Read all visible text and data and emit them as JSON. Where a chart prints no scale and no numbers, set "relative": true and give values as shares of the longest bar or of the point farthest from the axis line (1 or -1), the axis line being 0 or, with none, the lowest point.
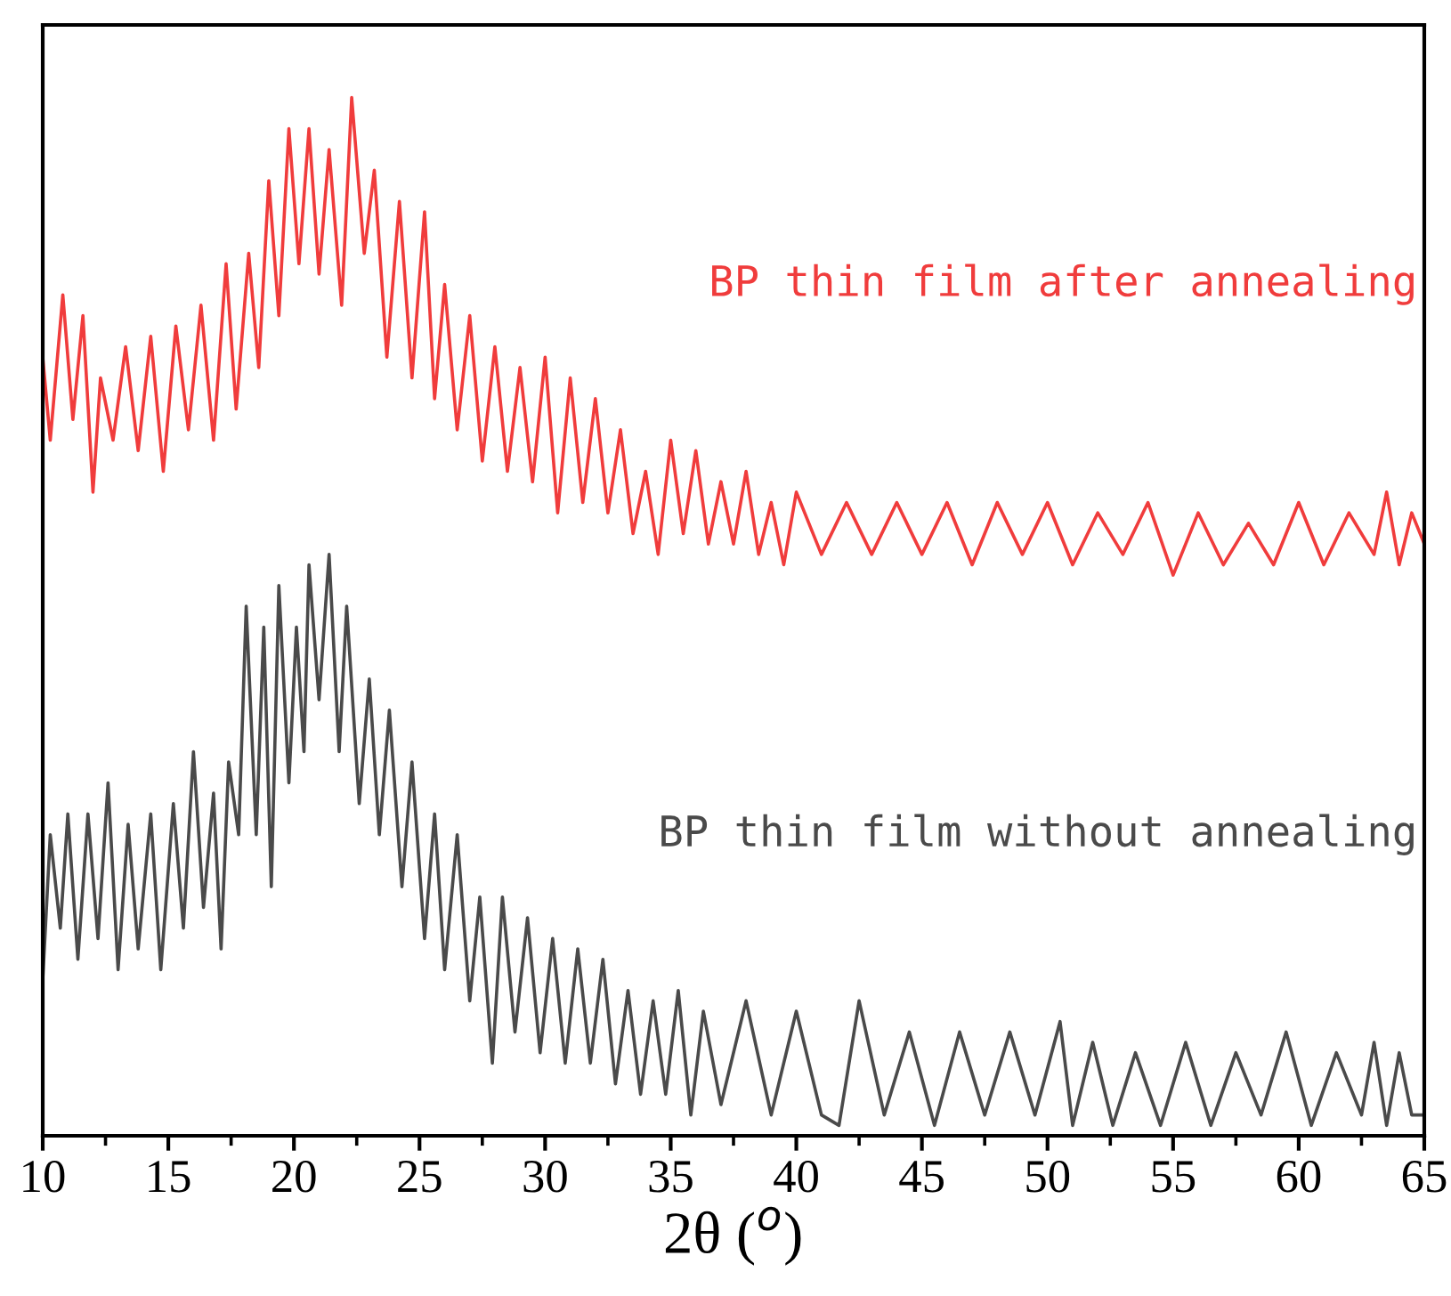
{
  "chart_data": {
    "type": "line",
    "relative": true,
    "xlabel": "2θ ($^{o}$)",
    "xlim": [
      10,
      65
    ],
    "xticks": [
      10,
      15,
      20,
      25,
      30,
      35,
      40,
      45,
      50,
      55,
      60,
      65
    ],
    "grid": false,
    "legend": false,
    "marker": "none",
    "line_style": "solid",
    "series": [
      {
        "name": "BP thin film after annealing",
        "color": "#f03c3c",
        "x": [
          10,
          10.3,
          10.8,
          11.2,
          11.6,
          12.0,
          12.3,
          12.8,
          13.3,
          13.8,
          14.3,
          14.8,
          15.3,
          15.8,
          16.3,
          16.8,
          17.3,
          17.7,
          18.2,
          18.6,
          19.0,
          19.4,
          19.8,
          20.2,
          20.6,
          21.0,
          21.4,
          21.9,
          22.3,
          22.8,
          23.2,
          23.7,
          24.2,
          24.7,
          25.2,
          25.6,
          26.0,
          26.5,
          27.0,
          27.5,
          28.0,
          28.5,
          29.0,
          29.5,
          30.0,
          30.5,
          31.0,
          31.5,
          32.0,
          32.5,
          33.0,
          33.5,
          34.0,
          34.5,
          35.0,
          35.5,
          36.0,
          36.5,
          37.0,
          37.5,
          38.0,
          38.5,
          39.0,
          39.5,
          40,
          41,
          42,
          43,
          44,
          45,
          46,
          47,
          48,
          49,
          50,
          51,
          52,
          53,
          54,
          55,
          56,
          57,
          58,
          59,
          60,
          61,
          62,
          63,
          63.5,
          64,
          64.5,
          65
        ],
        "values": [
          0.75,
          0.67,
          0.81,
          0.69,
          0.79,
          0.62,
          0.73,
          0.67,
          0.76,
          0.66,
          0.77,
          0.64,
          0.78,
          0.68,
          0.8,
          0.67,
          0.84,
          0.7,
          0.85,
          0.74,
          0.92,
          0.79,
          0.97,
          0.84,
          0.97,
          0.83,
          0.95,
          0.8,
          1.0,
          0.85,
          0.93,
          0.75,
          0.9,
          0.73,
          0.89,
          0.71,
          0.82,
          0.68,
          0.79,
          0.65,
          0.76,
          0.64,
          0.74,
          0.63,
          0.75,
          0.6,
          0.73,
          0.61,
          0.71,
          0.6,
          0.68,
          0.58,
          0.64,
          0.56,
          0.67,
          0.58,
          0.66,
          0.57,
          0.63,
          0.57,
          0.64,
          0.56,
          0.61,
          0.55,
          0.62,
          0.56,
          0.61,
          0.56,
          0.61,
          0.56,
          0.61,
          0.55,
          0.61,
          0.56,
          0.61,
          0.55,
          0.6,
          0.56,
          0.61,
          0.54,
          0.6,
          0.55,
          0.59,
          0.55,
          0.61,
          0.55,
          0.6,
          0.56,
          0.62,
          0.55,
          0.6,
          0.57
        ]
      },
      {
        "name": "BP thin film without annealing",
        "color": "#4a4a4a",
        "x": [
          10,
          10.3,
          10.7,
          11.0,
          11.4,
          11.8,
          12.2,
          12.6,
          13.0,
          13.4,
          13.8,
          14.3,
          14.7,
          15.2,
          15.6,
          16.0,
          16.4,
          16.8,
          17.1,
          17.4,
          17.8,
          18.1,
          18.5,
          18.8,
          19.1,
          19.4,
          19.8,
          20.1,
          20.4,
          20.6,
          21.0,
          21.4,
          21.8,
          22.1,
          22.6,
          23.0,
          23.4,
          23.8,
          24.3,
          24.7,
          25.2,
          25.6,
          26.0,
          26.5,
          27.0,
          27.4,
          27.9,
          28.3,
          28.8,
          29.3,
          29.8,
          30.3,
          30.8,
          31.3,
          31.8,
          32.3,
          32.8,
          33.3,
          33.8,
          34.3,
          34.8,
          35.3,
          35.8,
          36.3,
          37,
          38,
          39,
          40,
          41,
          41.7,
          42.5,
          43.5,
          44.5,
          45.5,
          46.5,
          47.5,
          48.5,
          49.5,
          50.5,
          51,
          51.8,
          52.6,
          53.5,
          54.5,
          55.5,
          56.5,
          57.5,
          58.5,
          59.5,
          60.5,
          61.5,
          62.5,
          63.0,
          63.5,
          64,
          64.5,
          65
        ],
        "values": [
          0.15,
          0.29,
          0.2,
          0.31,
          0.17,
          0.31,
          0.19,
          0.34,
          0.16,
          0.3,
          0.18,
          0.31,
          0.16,
          0.32,
          0.2,
          0.37,
          0.22,
          0.33,
          0.18,
          0.36,
          0.29,
          0.51,
          0.29,
          0.49,
          0.24,
          0.53,
          0.34,
          0.49,
          0.37,
          0.55,
          0.42,
          0.56,
          0.37,
          0.51,
          0.32,
          0.44,
          0.29,
          0.41,
          0.24,
          0.36,
          0.19,
          0.31,
          0.16,
          0.29,
          0.13,
          0.23,
          0.07,
          0.23,
          0.1,
          0.21,
          0.08,
          0.19,
          0.07,
          0.18,
          0.07,
          0.17,
          0.05,
          0.14,
          0.04,
          0.13,
          0.04,
          0.14,
          0.02,
          0.12,
          0.03,
          0.13,
          0.02,
          0.12,
          0.02,
          0.01,
          0.13,
          0.02,
          0.1,
          0.01,
          0.1,
          0.02,
          0.1,
          0.02,
          0.11,
          0.01,
          0.09,
          0.01,
          0.08,
          0.01,
          0.09,
          0.01,
          0.08,
          0.02,
          0.1,
          0.01,
          0.08,
          0.02,
          0.09,
          0.01,
          0.08,
          0.02,
          0.02
        ]
      }
    ]
  }
}
